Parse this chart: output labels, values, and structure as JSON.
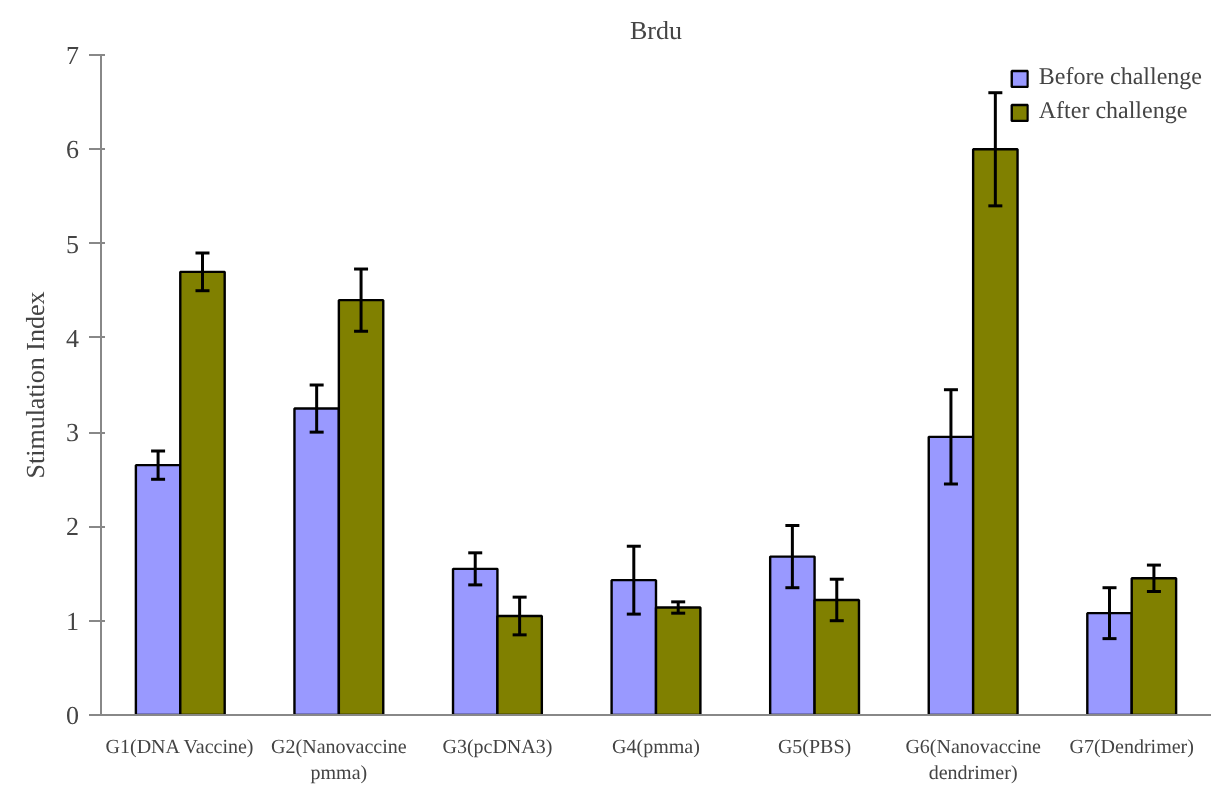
{
  "chart_data": {
    "type": "bar",
    "title": "Brdu",
    "ylabel": "Stimulation Index",
    "categories": [
      "G1(DNA Vaccine)",
      "G2(Nanovaccine pmma)",
      "G3(pcDNA3)",
      "G4(pmma)",
      "G5(PBS)",
      "G6(Nanovaccine dendrimer)",
      "G7(Dendrimer)"
    ],
    "series": [
      {
        "name": "Before challenge",
        "color": "#9999ff",
        "values": [
          2.65,
          3.25,
          1.55,
          1.43,
          1.68,
          2.95,
          1.08
        ],
        "errors": [
          0.15,
          0.25,
          0.17,
          0.36,
          0.33,
          0.5,
          0.27
        ]
      },
      {
        "name": "After challenge",
        "color": "#808000",
        "values": [
          4.7,
          4.4,
          1.05,
          1.14,
          1.22,
          6.0,
          1.45
        ],
        "errors": [
          0.2,
          0.33,
          0.2,
          0.06,
          0.22,
          0.6,
          0.14
        ]
      }
    ],
    "ylim": [
      0,
      7
    ],
    "yticks": [
      0,
      1,
      2,
      3,
      4,
      5,
      6,
      7
    ],
    "grid": false,
    "legend": "top right"
  }
}
